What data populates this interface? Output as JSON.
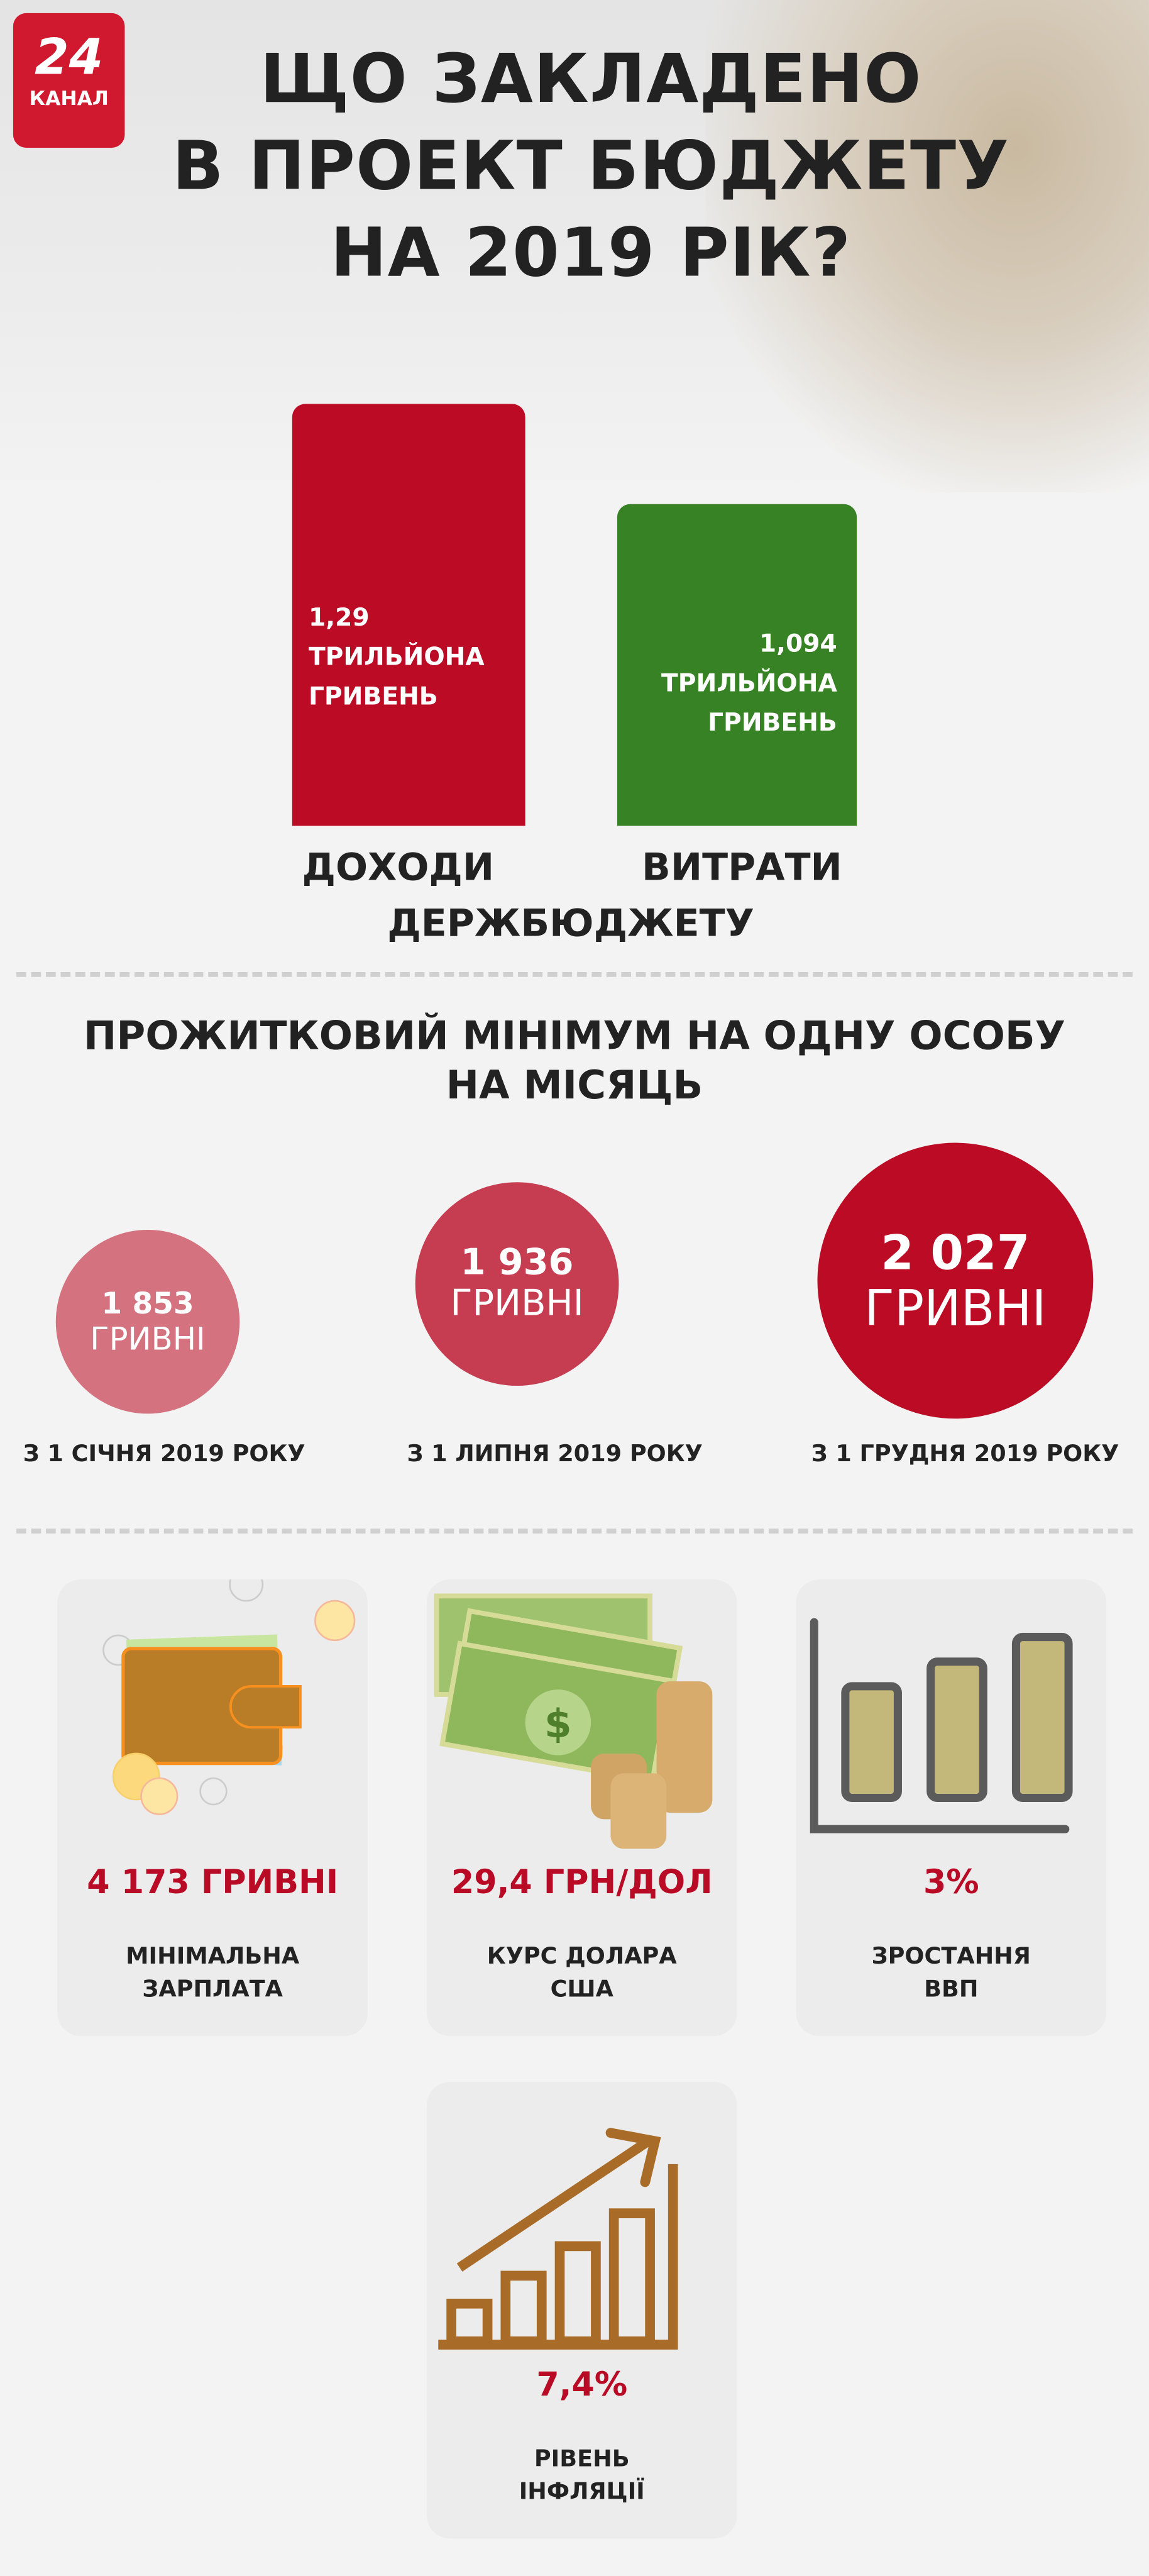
{
  "logo": {
    "number": "24",
    "word": "КАНАЛ"
  },
  "title": [
    "ЩО ЗАКЛАДЕНО",
    "В ПРОЕКТ БЮДЖЕТУ",
    "НА 2019 РІК?"
  ],
  "budget": {
    "revenue": {
      "value": "1,29",
      "unit1": "ТРИЛЬЙОНА",
      "unit2": "ГРИВЕНЬ",
      "label": "ДОХОДИ",
      "color": "#bb0b25",
      "amount_trillion": 1.29
    },
    "expenses": {
      "value": "1,094",
      "unit1": "ТРИЛЬЙОНА",
      "unit2": "ГРИВЕНЬ",
      "label": "ВИТРАТИ",
      "color": "#378224",
      "amount_trillion": 1.094
    },
    "common_label": "ДЕРЖБЮДЖЕТУ"
  },
  "subsistence": {
    "heading": [
      "ПРОЖИТКОВИЙ МІНІМУМ НА ОДНУ ОСОБУ",
      "НА МІСЯЦЬ"
    ],
    "items": [
      {
        "value": "1 853",
        "unit": "ГРИВНІ",
        "date": "З 1 СІЧНЯ 2019 РОКУ",
        "color": "#d4737f"
      },
      {
        "value": "1 936",
        "unit": "ГРИВНІ",
        "date": "З 1 ЛИПНЯ 2019 РОКУ",
        "color": "#c63d52"
      },
      {
        "value": "2 027",
        "unit": "ГРИВНІ",
        "date": "З 1 ГРУДНЯ 2019 РОКУ",
        "color": "#bb0b25"
      }
    ]
  },
  "indicators": [
    {
      "value": "4 173 ГРИВНІ",
      "caption": [
        "МІНІМАЛЬНА",
        "ЗАРПЛАТА"
      ],
      "icon": "wallet-icon"
    },
    {
      "value": "29,4 ГРН/ДОЛ",
      "caption": [
        "КУРС ДОЛАРА",
        "США"
      ],
      "icon": "money-coins-icon"
    },
    {
      "value": "3%",
      "caption": [
        "ЗРОСТАННЯ",
        "ВВП"
      ],
      "icon": "bar-chart-icon"
    },
    {
      "value": "7,4%",
      "caption": [
        "РІВЕНЬ",
        "ІНФЛЯЦІЇ"
      ],
      "icon": "growth-chart-icon"
    }
  ]
}
